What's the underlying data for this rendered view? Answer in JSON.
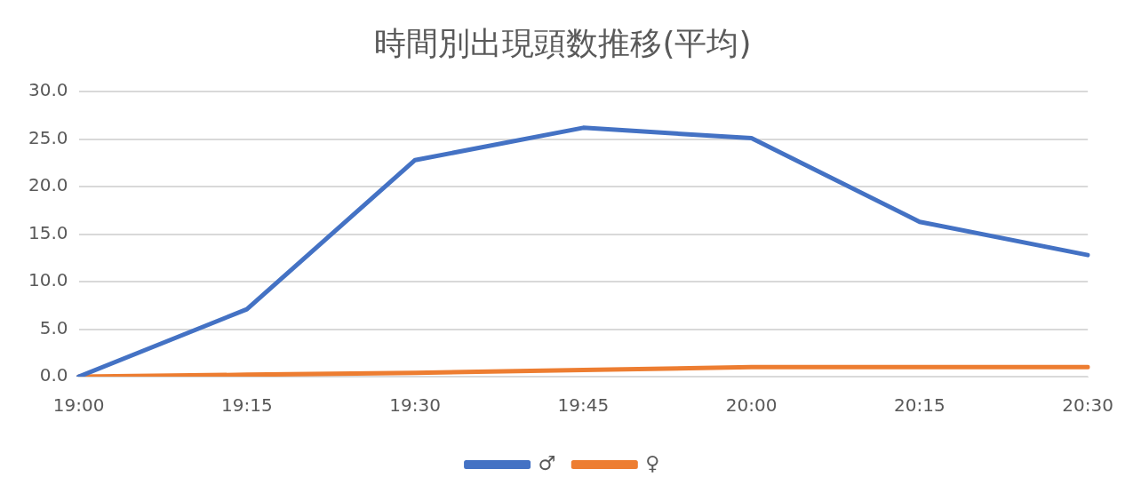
{
  "chart_data": {
    "type": "line",
    "title": "時間別出現頭数推移(平均)",
    "categories": [
      "19:00",
      "19:15",
      "19:30",
      "19:45",
      "20:00",
      "20:15",
      "20:30"
    ],
    "series": [
      {
        "name": "♂",
        "color": "#4472c4",
        "values": [
          0,
          7.1,
          22.8,
          26.2,
          25.1,
          16.3,
          12.8
        ]
      },
      {
        "name": "♀",
        "color": "#ed7d31",
        "values": [
          0,
          0.2,
          0.4,
          0.7,
          1.0,
          1.0,
          1.0
        ]
      }
    ],
    "ylim": [
      0,
      30
    ],
    "yticks": [
      {
        "value": 0,
        "label": "0.0"
      },
      {
        "value": 5,
        "label": "5.0"
      },
      {
        "value": 10,
        "label": "10.0"
      },
      {
        "value": 15,
        "label": "15.0"
      },
      {
        "value": 20,
        "label": "20.0"
      },
      {
        "value": 25,
        "label": "25.0"
      },
      {
        "value": 30,
        "label": "30.0"
      }
    ],
    "grid": "y",
    "legend": "bottom",
    "marker": "none",
    "line_style": "solid"
  }
}
